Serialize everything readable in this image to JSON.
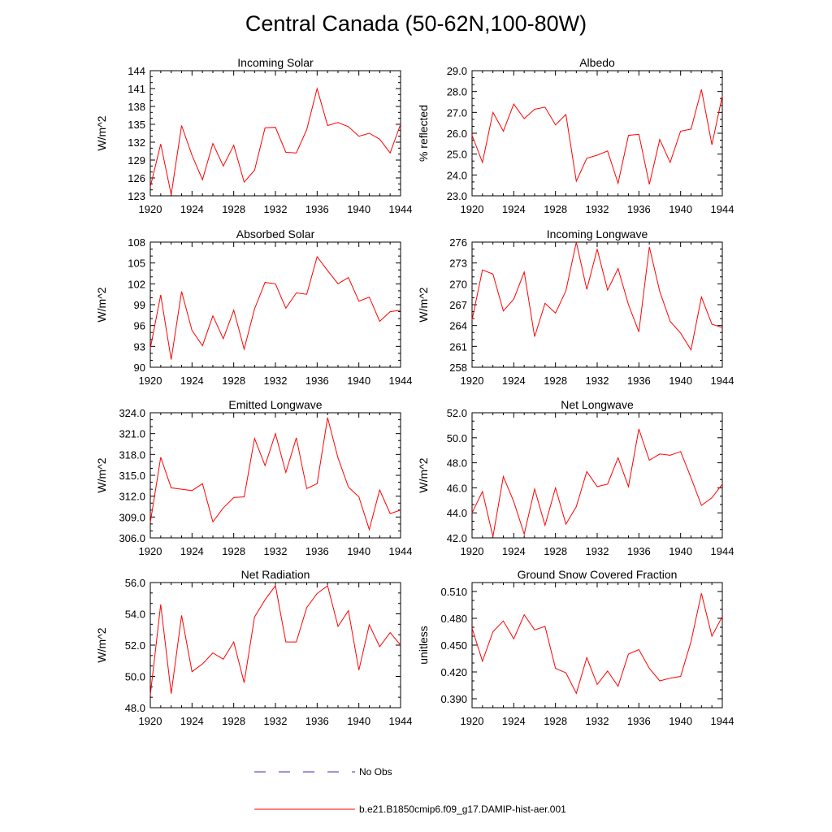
{
  "title": "Central Canada (50-62N,100-80W)",
  "legend": {
    "items": [
      {
        "label": "No Obs",
        "color": "#3333aa",
        "style": "dashed"
      },
      {
        "label": "b.e21.B1850cmip6.f09_g17.DAMIP-hist-aer.001",
        "color": "#ff0000",
        "style": "solid"
      }
    ]
  },
  "chart_data": [
    {
      "type": "line",
      "title": "Incoming Solar",
      "ylabel": "W/m^2",
      "xlim": [
        1920,
        1944
      ],
      "ylim": [
        123,
        144
      ],
      "xticks": [
        "1920",
        "1924",
        "1928",
        "1932",
        "1936",
        "1940",
        "1944"
      ],
      "yticks": [
        "123",
        "126",
        "129",
        "132",
        "135",
        "138",
        "141",
        "144"
      ],
      "series": [
        {
          "color": "#ff0000",
          "x": [
            1920,
            1921,
            1922,
            1923,
            1924,
            1925,
            1926,
            1927,
            1928,
            1929,
            1930,
            1931,
            1932,
            1933,
            1934,
            1935,
            1936,
            1937,
            1938,
            1939,
            1940,
            1941,
            1942,
            1943,
            1944
          ],
          "y": [
            124.5,
            131.7,
            123.2,
            134.8,
            129.8,
            125.7,
            131.8,
            128.0,
            131.5,
            125.3,
            127.3,
            134.4,
            134.5,
            130.3,
            130.2,
            134.1,
            141.0,
            134.8,
            135.3,
            134.6,
            133.0,
            133.5,
            132.5,
            130.2,
            135.0
          ]
        }
      ]
    },
    {
      "type": "line",
      "title": "Albedo",
      "ylabel": "% reflected",
      "xlim": [
        1920,
        1944
      ],
      "ylim": [
        23.0,
        29.0
      ],
      "xticks": [
        "1920",
        "1924",
        "1928",
        "1932",
        "1936",
        "1940",
        "1944"
      ],
      "yticks": [
        "23.0",
        "24.0",
        "25.0",
        "26.0",
        "27.0",
        "28.0",
        "29.0"
      ],
      "series": [
        {
          "color": "#ff0000",
          "x": [
            1920,
            1921,
            1922,
            1923,
            1924,
            1925,
            1926,
            1927,
            1928,
            1929,
            1930,
            1931,
            1932,
            1933,
            1934,
            1935,
            1936,
            1937,
            1938,
            1939,
            1940,
            1941,
            1942,
            1943,
            1944
          ],
          "y": [
            25.9,
            24.6,
            27.0,
            26.1,
            27.4,
            26.7,
            27.15,
            27.25,
            26.4,
            26.9,
            23.7,
            24.8,
            24.95,
            25.15,
            23.6,
            25.9,
            25.95,
            23.55,
            25.7,
            24.6,
            26.1,
            26.2,
            28.1,
            25.45,
            27.8
          ]
        }
      ]
    },
    {
      "type": "line",
      "title": "Absorbed Solar",
      "ylabel": "W/m^2",
      "xlim": [
        1920,
        1944
      ],
      "ylim": [
        90,
        108
      ],
      "xticks": [
        "1920",
        "1924",
        "1928",
        "1932",
        "1936",
        "1940",
        "1944"
      ],
      "yticks": [
        "90",
        "93",
        "96",
        "99",
        "102",
        "105",
        "108"
      ],
      "series": [
        {
          "color": "#ff0000",
          "x": [
            1920,
            1921,
            1922,
            1923,
            1924,
            1925,
            1926,
            1927,
            1928,
            1929,
            1930,
            1931,
            1932,
            1933,
            1934,
            1935,
            1936,
            1937,
            1938,
            1939,
            1940,
            1941,
            1942,
            1943,
            1944
          ],
          "y": [
            92.7,
            100.4,
            91.1,
            100.9,
            95.3,
            93.1,
            97.4,
            94.1,
            98.2,
            92.6,
            98.4,
            102.2,
            102.0,
            98.5,
            100.7,
            100.5,
            105.9,
            103.9,
            102.0,
            102.9,
            99.5,
            100.1,
            96.6,
            98.0,
            98.2
          ]
        }
      ]
    },
    {
      "type": "line",
      "title": "Incoming Longwave",
      "ylabel": "W/m^2",
      "xlim": [
        1920,
        1944
      ],
      "ylim": [
        258,
        276
      ],
      "xticks": [
        "1920",
        "1924",
        "1928",
        "1932",
        "1936",
        "1940",
        "1944"
      ],
      "yticks": [
        "258",
        "261",
        "264",
        "267",
        "270",
        "273",
        "276"
      ],
      "series": [
        {
          "color": "#ff0000",
          "x": [
            1920,
            1921,
            1922,
            1923,
            1924,
            1925,
            1926,
            1927,
            1928,
            1929,
            1930,
            1931,
            1932,
            1933,
            1934,
            1935,
            1936,
            1937,
            1938,
            1939,
            1940,
            1941,
            1942,
            1943,
            1944
          ],
          "y": [
            264.8,
            272.0,
            271.4,
            266.1,
            267.8,
            271.7,
            262.4,
            267.2,
            265.8,
            269.0,
            276.0,
            269.2,
            275.0,
            269.1,
            272.2,
            267.0,
            263.1,
            275.3,
            268.9,
            264.6,
            262.9,
            260.5,
            268.1,
            264.2,
            263.7
          ]
        }
      ]
    },
    {
      "type": "line",
      "title": "Emitted Longwave",
      "ylabel": "W/m^2",
      "xlim": [
        1920,
        1944
      ],
      "ylim": [
        306.0,
        324.0
      ],
      "xticks": [
        "1920",
        "1924",
        "1928",
        "1932",
        "1936",
        "1940",
        "1944"
      ],
      "yticks": [
        "306.0",
        "309.0",
        "312.0",
        "315.0",
        "318.0",
        "321.0",
        "324.0"
      ],
      "series": [
        {
          "color": "#ff0000",
          "x": [
            1920,
            1921,
            1922,
            1923,
            1924,
            1925,
            1926,
            1927,
            1928,
            1929,
            1930,
            1931,
            1932,
            1933,
            1934,
            1935,
            1936,
            1937,
            1938,
            1939,
            1940,
            1941,
            1942,
            1943,
            1944
          ],
          "y": [
            308.2,
            317.6,
            313.2,
            313.0,
            312.8,
            313.8,
            308.3,
            310.3,
            311.8,
            311.9,
            320.3,
            316.4,
            321.0,
            315.4,
            320.4,
            313.1,
            313.8,
            323.3,
            317.5,
            313.3,
            311.9,
            307.2,
            312.9,
            309.5,
            310.0
          ]
        }
      ]
    },
    {
      "type": "line",
      "title": "Net Longwave",
      "ylabel": "W/m^2",
      "xlim": [
        1920,
        1944
      ],
      "ylim": [
        42.0,
        52.0
      ],
      "xticks": [
        "1920",
        "1924",
        "1928",
        "1932",
        "1936",
        "1940",
        "1944"
      ],
      "yticks": [
        "42.0",
        "44.0",
        "46.0",
        "48.0",
        "50.0",
        "52.0"
      ],
      "series": [
        {
          "color": "#ff0000",
          "x": [
            1920,
            1921,
            1922,
            1923,
            1924,
            1925,
            1926,
            1927,
            1928,
            1929,
            1930,
            1931,
            1932,
            1933,
            1934,
            1935,
            1936,
            1937,
            1938,
            1939,
            1940,
            1941,
            1942,
            1943,
            1944
          ],
          "y": [
            44.0,
            45.7,
            42.1,
            46.9,
            44.9,
            42.3,
            45.9,
            43.0,
            46.0,
            43.1,
            44.5,
            47.3,
            46.1,
            46.3,
            48.4,
            46.1,
            50.7,
            48.2,
            48.7,
            48.6,
            48.9,
            46.8,
            44.6,
            45.2,
            46.3
          ]
        }
      ]
    },
    {
      "type": "line",
      "title": "Net Radiation",
      "ylabel": "W/m^2",
      "xlim": [
        1920,
        1944
      ],
      "ylim": [
        48.0,
        56.0
      ],
      "xticks": [
        "1920",
        "1924",
        "1928",
        "1932",
        "1936",
        "1940",
        "1944"
      ],
      "yticks": [
        "48.0",
        "50.0",
        "52.0",
        "54.0",
        "56.0"
      ],
      "series": [
        {
          "color": "#ff0000",
          "x": [
            1920,
            1921,
            1922,
            1923,
            1924,
            1925,
            1926,
            1927,
            1928,
            1929,
            1930,
            1931,
            1932,
            1933,
            1934,
            1935,
            1936,
            1937,
            1938,
            1939,
            1940,
            1941,
            1942,
            1943,
            1944
          ],
          "y": [
            48.8,
            54.6,
            48.9,
            53.9,
            50.3,
            50.8,
            51.5,
            51.1,
            52.2,
            49.6,
            53.8,
            54.9,
            55.8,
            52.2,
            52.2,
            54.4,
            55.3,
            55.8,
            53.2,
            54.2,
            50.4,
            53.3,
            51.9,
            52.8,
            52.0
          ]
        }
      ]
    },
    {
      "type": "line",
      "title": "Ground Snow Covered Fraction",
      "ylabel": "unitless",
      "xlim": [
        1920,
        1944
      ],
      "ylim": [
        0.38,
        0.52
      ],
      "xticks": [
        "1920",
        "1924",
        "1928",
        "1932",
        "1936",
        "1940",
        "1944"
      ],
      "yticks": [
        "0.390",
        "0.420",
        "0.450",
        "0.480",
        "0.510"
      ],
      "series": [
        {
          "color": "#ff0000",
          "x": [
            1920,
            1921,
            1922,
            1923,
            1924,
            1925,
            1926,
            1927,
            1928,
            1929,
            1930,
            1931,
            1932,
            1933,
            1934,
            1935,
            1936,
            1937,
            1938,
            1939,
            1940,
            1941,
            1942,
            1943,
            1944
          ],
          "y": [
            0.469,
            0.432,
            0.465,
            0.477,
            0.457,
            0.484,
            0.467,
            0.471,
            0.424,
            0.419,
            0.396,
            0.436,
            0.406,
            0.421,
            0.404,
            0.44,
            0.445,
            0.424,
            0.41,
            0.413,
            0.415,
            0.454,
            0.508,
            0.46,
            0.482
          ]
        }
      ]
    }
  ]
}
